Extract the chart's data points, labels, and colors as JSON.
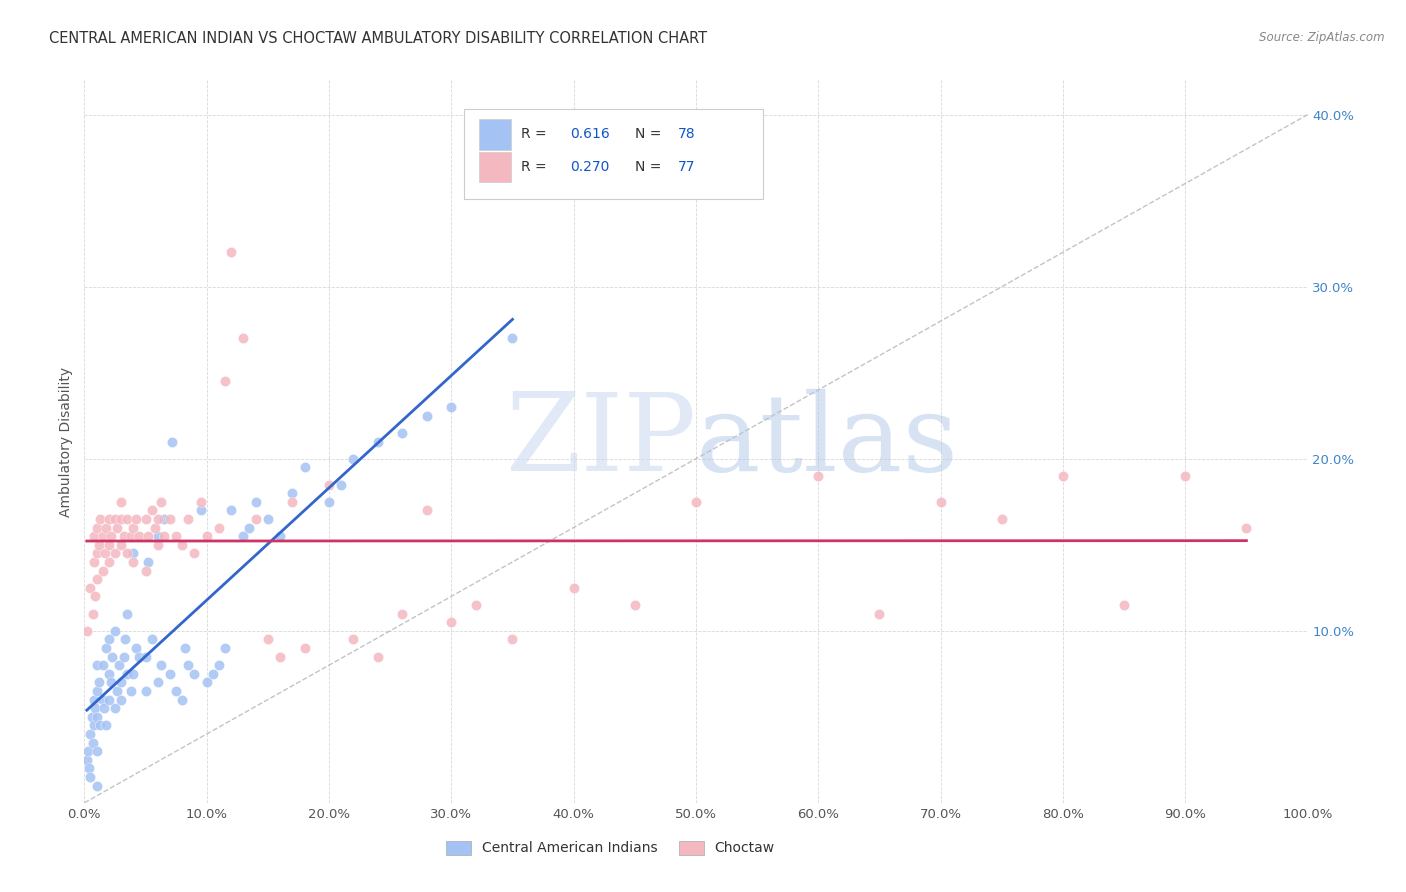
{
  "title": "CENTRAL AMERICAN INDIAN VS CHOCTAW AMBULATORY DISABILITY CORRELATION CHART",
  "source": "Source: ZipAtlas.com",
  "ylabel": "Ambulatory Disability",
  "xlim": [
    0,
    1.0
  ],
  "ylim": [
    0,
    0.42
  ],
  "xticks": [
    0.0,
    0.1,
    0.2,
    0.3,
    0.4,
    0.5,
    0.6,
    0.7,
    0.8,
    0.9,
    1.0
  ],
  "yticks": [
    0.0,
    0.1,
    0.2,
    0.3,
    0.4
  ],
  "xtick_labels": [
    "0.0%",
    "10.0%",
    "20.0%",
    "30.0%",
    "40.0%",
    "50.0%",
    "60.0%",
    "70.0%",
    "80.0%",
    "90.0%",
    "100.0%"
  ],
  "ytick_labels": [
    "",
    "10.0%",
    "20.0%",
    "30.0%",
    "40.0%"
  ],
  "background_color": "#ffffff",
  "grid_color": "#d8d8d8",
  "diag_line_color": "#aaaaaa",
  "blue_color": "#a4c2f4",
  "pink_color": "#f4b8c1",
  "blue_line_color": "#3366cc",
  "pink_line_color": "#cc3366",
  "legend_text_color": "#1155cc",
  "title_color": "#333333",
  "ylabel_color": "#555555",
  "blue_scatter_x": [
    0.002,
    0.003,
    0.004,
    0.005,
    0.005,
    0.006,
    0.007,
    0.008,
    0.008,
    0.009,
    0.01,
    0.01,
    0.01,
    0.01,
    0.01,
    0.012,
    0.013,
    0.015,
    0.015,
    0.016,
    0.018,
    0.018,
    0.02,
    0.02,
    0.02,
    0.022,
    0.023,
    0.025,
    0.025,
    0.027,
    0.028,
    0.03,
    0.03,
    0.032,
    0.033,
    0.035,
    0.035,
    0.038,
    0.04,
    0.04,
    0.042,
    0.045,
    0.05,
    0.05,
    0.052,
    0.055,
    0.06,
    0.06,
    0.063,
    0.065,
    0.07,
    0.072,
    0.075,
    0.08,
    0.082,
    0.085,
    0.09,
    0.095,
    0.1,
    0.105,
    0.11,
    0.115,
    0.12,
    0.13,
    0.135,
    0.14,
    0.15,
    0.16,
    0.17,
    0.18,
    0.2,
    0.21,
    0.22,
    0.24,
    0.26,
    0.28,
    0.3,
    0.35
  ],
  "blue_scatter_y": [
    0.025,
    0.03,
    0.02,
    0.015,
    0.04,
    0.05,
    0.035,
    0.045,
    0.06,
    0.055,
    0.01,
    0.03,
    0.05,
    0.065,
    0.08,
    0.07,
    0.045,
    0.06,
    0.08,
    0.055,
    0.045,
    0.09,
    0.06,
    0.075,
    0.095,
    0.07,
    0.085,
    0.055,
    0.1,
    0.065,
    0.08,
    0.07,
    0.06,
    0.085,
    0.095,
    0.075,
    0.11,
    0.065,
    0.075,
    0.145,
    0.09,
    0.085,
    0.065,
    0.085,
    0.14,
    0.095,
    0.07,
    0.155,
    0.08,
    0.165,
    0.075,
    0.21,
    0.065,
    0.06,
    0.09,
    0.08,
    0.075,
    0.17,
    0.07,
    0.075,
    0.08,
    0.09,
    0.17,
    0.155,
    0.16,
    0.175,
    0.165,
    0.155,
    0.18,
    0.195,
    0.175,
    0.185,
    0.2,
    0.21,
    0.215,
    0.225,
    0.23,
    0.27
  ],
  "pink_scatter_x": [
    0.002,
    0.005,
    0.007,
    0.008,
    0.008,
    0.009,
    0.01,
    0.01,
    0.01,
    0.012,
    0.013,
    0.015,
    0.015,
    0.017,
    0.018,
    0.02,
    0.02,
    0.02,
    0.022,
    0.025,
    0.025,
    0.027,
    0.03,
    0.03,
    0.03,
    0.032,
    0.035,
    0.035,
    0.038,
    0.04,
    0.04,
    0.042,
    0.045,
    0.05,
    0.05,
    0.052,
    0.055,
    0.058,
    0.06,
    0.06,
    0.063,
    0.065,
    0.07,
    0.075,
    0.08,
    0.085,
    0.09,
    0.095,
    0.1,
    0.11,
    0.115,
    0.12,
    0.13,
    0.14,
    0.15,
    0.16,
    0.17,
    0.18,
    0.2,
    0.22,
    0.24,
    0.26,
    0.28,
    0.3,
    0.32,
    0.35,
    0.4,
    0.45,
    0.5,
    0.6,
    0.65,
    0.7,
    0.75,
    0.8,
    0.85,
    0.9,
    0.95
  ],
  "pink_scatter_y": [
    0.1,
    0.125,
    0.11,
    0.14,
    0.155,
    0.12,
    0.145,
    0.13,
    0.16,
    0.15,
    0.165,
    0.135,
    0.155,
    0.145,
    0.16,
    0.15,
    0.165,
    0.14,
    0.155,
    0.165,
    0.145,
    0.16,
    0.15,
    0.165,
    0.175,
    0.155,
    0.145,
    0.165,
    0.155,
    0.14,
    0.16,
    0.165,
    0.155,
    0.135,
    0.165,
    0.155,
    0.17,
    0.16,
    0.15,
    0.165,
    0.175,
    0.155,
    0.165,
    0.155,
    0.15,
    0.165,
    0.145,
    0.175,
    0.155,
    0.16,
    0.245,
    0.32,
    0.27,
    0.165,
    0.095,
    0.085,
    0.175,
    0.09,
    0.185,
    0.095,
    0.085,
    0.11,
    0.17,
    0.105,
    0.115,
    0.095,
    0.125,
    0.115,
    0.175,
    0.19,
    0.11,
    0.175,
    0.165,
    0.19,
    0.115,
    0.19,
    0.16
  ]
}
